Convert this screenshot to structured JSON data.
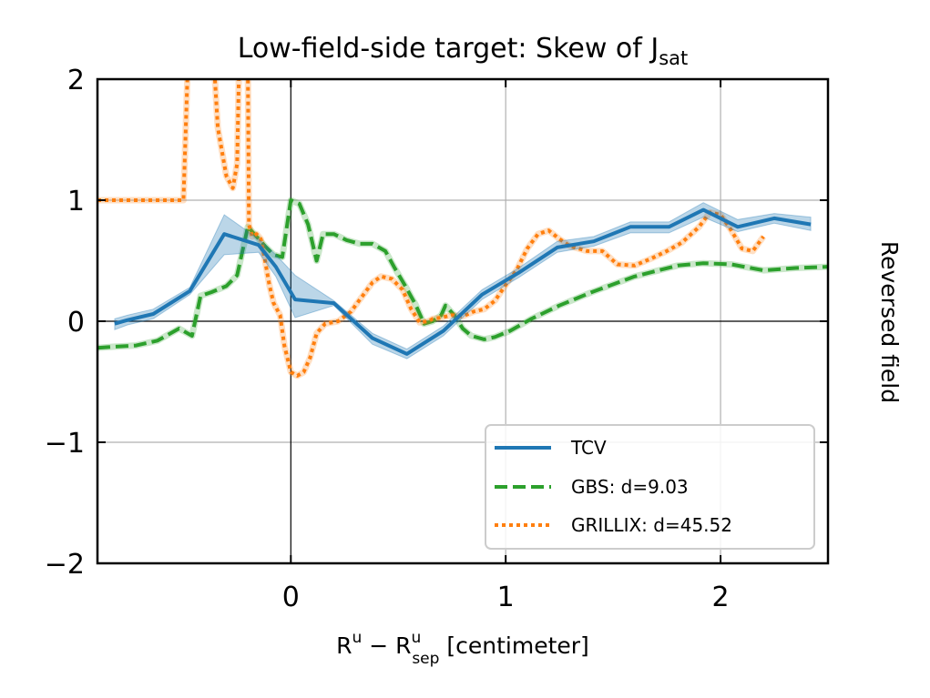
{
  "chart_data": {
    "type": "line",
    "title": {
      "main": "Low-field-side target: Skew of J",
      "sub": "sat"
    },
    "xlabel": {
      "r1": "R",
      "sup1": "u",
      "minus": " − ",
      "r2": "R",
      "sup2": "u",
      "sub2": "sep",
      "unit": " [centimeter]"
    },
    "side_label": "Reversed field",
    "xlim": [
      -0.9,
      2.5
    ],
    "ylim": [
      -2,
      2
    ],
    "x_ticks": [
      {
        "value": 0,
        "label": "0"
      },
      {
        "value": 1,
        "label": "1"
      },
      {
        "value": 2,
        "label": "2"
      }
    ],
    "y_ticks": [
      {
        "value": 2,
        "label": "2"
      },
      {
        "value": 1,
        "label": "1"
      },
      {
        "value": 0,
        "label": "0"
      },
      {
        "value": -1,
        "label": "−1"
      },
      {
        "value": -2,
        "label": "−2"
      }
    ],
    "grid": true,
    "legend_position": "lower-right",
    "series": [
      {
        "name": "TCV",
        "color": "#1f77b4",
        "style": "solid",
        "x": [
          -0.82,
          -0.76,
          -0.64,
          -0.47,
          -0.31,
          -0.15,
          -0.07,
          0.02,
          0.2,
          0.38,
          0.54,
          0.71,
          0.89,
          1.06,
          1.24,
          1.41,
          1.58,
          1.76,
          1.92,
          2.08,
          2.25,
          2.42
        ],
        "y": [
          -0.02,
          0.01,
          0.06,
          0.25,
          0.72,
          0.63,
          0.45,
          0.18,
          0.15,
          -0.14,
          -0.27,
          -0.08,
          0.22,
          0.4,
          0.61,
          0.66,
          0.78,
          0.78,
          0.92,
          0.78,
          0.85,
          0.8
        ],
        "band_low": [
          -0.07,
          -0.03,
          0.02,
          0.22,
          0.55,
          0.57,
          0.37,
          0.03,
          0.13,
          -0.19,
          -0.31,
          -0.12,
          0.18,
          0.36,
          0.57,
          0.62,
          0.73,
          0.73,
          0.86,
          0.74,
          0.81,
          0.75
        ],
        "band_high": [
          0.02,
          0.05,
          0.1,
          0.28,
          0.88,
          0.68,
          0.55,
          0.38,
          0.17,
          -0.1,
          -0.23,
          -0.04,
          0.26,
          0.44,
          0.66,
          0.7,
          0.82,
          0.82,
          0.98,
          0.84,
          0.89,
          0.86
        ]
      },
      {
        "name": "GBS: d=9.03",
        "color": "#2ca02c",
        "style": "dashed",
        "x": [
          -0.9,
          -0.82,
          -0.72,
          -0.62,
          -0.52,
          -0.46,
          -0.42,
          -0.37,
          -0.3,
          -0.25,
          -0.2,
          -0.17,
          -0.12,
          -0.08,
          -0.04,
          0.0,
          0.04,
          0.08,
          0.12,
          0.15,
          0.2,
          0.26,
          0.32,
          0.38,
          0.44,
          0.48,
          0.53,
          0.58,
          0.62,
          0.66,
          0.7,
          0.72,
          0.76,
          0.8,
          0.84,
          0.9,
          0.95,
          1.02,
          1.12,
          1.25,
          1.4,
          1.6,
          1.8,
          1.92,
          2.05,
          2.2,
          2.35,
          2.5
        ],
        "y": [
          -0.22,
          -0.21,
          -0.2,
          -0.16,
          -0.06,
          -0.12,
          0.21,
          0.24,
          0.29,
          0.38,
          0.78,
          0.72,
          0.62,
          0.55,
          0.53,
          1.0,
          0.97,
          0.8,
          0.5,
          0.72,
          0.72,
          0.67,
          0.64,
          0.64,
          0.58,
          0.45,
          0.3,
          0.14,
          -0.02,
          0.0,
          0.05,
          0.13,
          0.05,
          -0.06,
          -0.12,
          -0.15,
          -0.13,
          -0.08,
          0.02,
          0.13,
          0.24,
          0.37,
          0.46,
          0.48,
          0.47,
          0.42,
          0.44,
          0.45
        ]
      },
      {
        "name": "GRILLIX: d=45.52",
        "color": "#ff7f0e",
        "style": "dotted",
        "x": [
          -0.9,
          -0.5,
          -0.48,
          -0.5,
          -0.45,
          -0.37,
          -0.34,
          -0.32,
          -0.3,
          -0.27,
          -0.25,
          -0.24,
          -0.22,
          -0.2,
          -0.195,
          -0.18,
          -0.16,
          -0.14,
          -0.12,
          -0.1,
          -0.08,
          -0.05,
          -0.03,
          0.0,
          0.03,
          0.06,
          0.09,
          0.12,
          0.16,
          0.22,
          0.28,
          0.33,
          0.38,
          0.42,
          0.47,
          0.52,
          0.56,
          0.6,
          0.64,
          0.66,
          0.7,
          0.75,
          0.8,
          0.85,
          0.9,
          0.95,
          1.0,
          1.05,
          1.1,
          1.15,
          1.2,
          1.25,
          1.3,
          1.38,
          1.45,
          1.52,
          1.6,
          1.68,
          1.75,
          1.82,
          1.9,
          1.95,
          2.0,
          2.05,
          2.1,
          2.15,
          2.2
        ],
        "y": [
          1.0,
          1.0,
          2.1,
          2.5,
          2.5,
          2.5,
          1.6,
          1.4,
          1.2,
          1.1,
          1.3,
          2.2,
          2.5,
          2.1,
          0.8,
          0.7,
          0.72,
          0.68,
          0.5,
          0.3,
          0.15,
          0.05,
          -0.2,
          -0.42,
          -0.45,
          -0.42,
          -0.3,
          -0.1,
          -0.02,
          0.0,
          0.08,
          0.2,
          0.32,
          0.37,
          0.35,
          0.26,
          0.1,
          -0.01,
          0.0,
          0.02,
          0.03,
          0.05,
          0.04,
          0.08,
          0.1,
          0.17,
          0.3,
          0.42,
          0.6,
          0.72,
          0.75,
          0.68,
          0.62,
          0.58,
          0.58,
          0.47,
          0.46,
          0.52,
          0.58,
          0.65,
          0.78,
          0.9,
          0.88,
          0.75,
          0.6,
          0.58,
          0.7
        ]
      }
    ]
  }
}
